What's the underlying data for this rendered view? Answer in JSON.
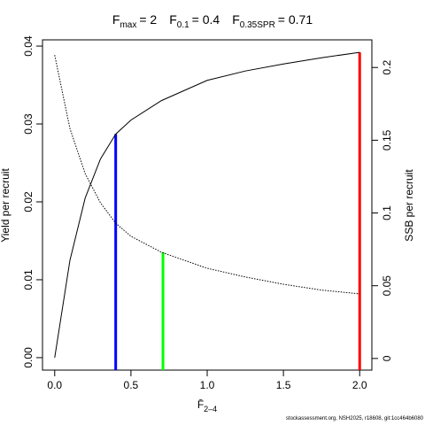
{
  "chart_data": {
    "type": "line",
    "title": [
      {
        "symbol": "F",
        "subscript": "max",
        "text": "= 2"
      },
      {
        "symbol": "F",
        "subscript": "0.1",
        "text": "= 0.4"
      },
      {
        "symbol": "F",
        "subscript": "0.35SPR",
        "text": "= 0.71"
      }
    ],
    "xlabel": {
      "symbol": "F̄",
      "subscript": "2–4"
    },
    "ylabel": "Yield per recruit",
    "y2label": "SSB per recruit",
    "footnote": "stockassessment.org, NSH2025, r18608, git:1cc464b6080",
    "x": [
      0,
      0.1,
      0.2,
      0.3,
      0.4,
      0.5,
      0.7,
      1.0,
      1.25,
      1.5,
      1.75,
      2.0
    ],
    "series": [
      {
        "axis": "y",
        "color": "#000000",
        "dashed": false,
        "values": [
          0,
          0.0125,
          0.0205,
          0.0255,
          0.0287,
          0.0305,
          0.033,
          0.0356,
          0.0368,
          0.0377,
          0.0385,
          0.0392
        ]
      },
      {
        "axis": "y2",
        "color": "#000000",
        "dashed": true,
        "values": [
          0.2085,
          0.158,
          0.127,
          0.107,
          0.093,
          0.084,
          0.073,
          0.062,
          0.056,
          0.051,
          0.047,
          0.0444
        ]
      }
    ],
    "reference_lines": [
      {
        "x": 0.4,
        "top": 0.0287,
        "axis": "y",
        "color": "#0000ff"
      },
      {
        "x": 0.71,
        "top": 0.073,
        "axis": "y2",
        "color": "#00ff00"
      },
      {
        "x": 2,
        "top": 0.0392,
        "axis": "y",
        "color": "#ff0000"
      }
    ],
    "xlim": [
      -0.08,
      2.08
    ],
    "xticks": [
      {
        "value": 0,
        "label": "0.0"
      },
      0.5,
      {
        "value": 1,
        "label": "1.0"
      },
      1.5,
      {
        "value": 2,
        "label": "2.0"
      }
    ],
    "ylim": [
      -0.0016,
      0.0408
    ],
    "yticks": [
      {
        "value": 0,
        "label": "0.00"
      },
      0.01,
      0.02,
      0.03,
      0.04
    ],
    "y2lim": [
      -0.008,
      0.219
    ],
    "y2ticks": [
      0,
      0.05,
      0.1,
      0.15,
      0.2
    ]
  }
}
